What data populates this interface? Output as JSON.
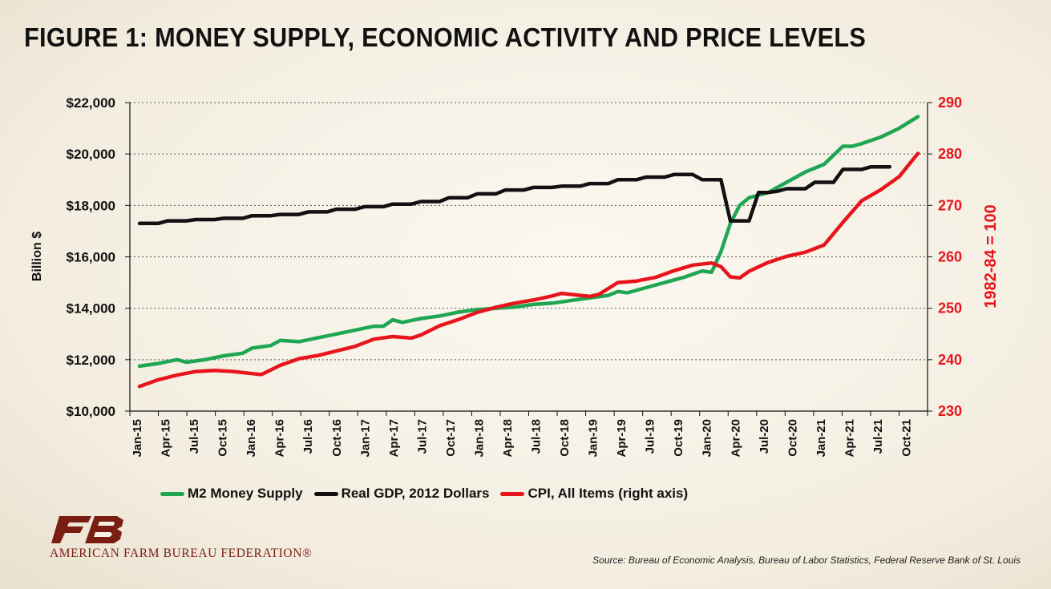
{
  "page": {
    "title": "FIGURE 1: MONEY SUPPLY, ECONOMIC ACTIVITY AND PRICE LEVELS",
    "source": "Source: Bureau of Economic Analysis, Bureau of Labor Statistics, Federal Reserve Bank of St. Louis",
    "logo_text": "AMERICAN FARM BUREAU FEDERATION®"
  },
  "chart_data": {
    "type": "line",
    "title": "FIGURE 1: MONEY SUPPLY, ECONOMIC ACTIVITY AND PRICE LEVELS",
    "ylabel": "Billion $",
    "y2label": "1982-84 = 100",
    "ylim": [
      10000,
      22000
    ],
    "y2lim": [
      230,
      290
    ],
    "yticks": [
      10000,
      12000,
      14000,
      16000,
      18000,
      20000,
      22000
    ],
    "ytick_labels": [
      "$10,000",
      "$12,000",
      "$14,000",
      "$16,000",
      "$18,000",
      "$20,000",
      "$22,000"
    ],
    "y2ticks": [
      230,
      240,
      250,
      260,
      270,
      280,
      290
    ],
    "y2tick_labels": [
      "230",
      "240",
      "250",
      "260",
      "270",
      "280",
      "290"
    ],
    "x_range": [
      "2015-01",
      "2021-12"
    ],
    "xtick_labels": [
      "Jan-15",
      "Apr-15",
      "Jul-15",
      "Oct-15",
      "Jan-16",
      "Apr-16",
      "Jul-16",
      "Oct-16",
      "Jan-17",
      "Apr-17",
      "Jul-17",
      "Oct-17",
      "Jan-18",
      "Apr-18",
      "Jul-18",
      "Oct-18",
      "Jan-19",
      "Apr-19",
      "Jul-19",
      "Oct-19",
      "Jan-20",
      "Apr-20",
      "Jul-20",
      "Oct-20",
      "Jan-21",
      "Apr-21",
      "Jul-21",
      "Oct-21"
    ],
    "grid": "horizontal-dotted",
    "legend_position": "bottom",
    "series": [
      {
        "name": "M2 Money Supply",
        "axis": "left",
        "color": "#1fa653",
        "x": [
          "2015-01",
          "2015-03",
          "2015-05",
          "2015-06",
          "2015-08",
          "2015-10",
          "2015-12",
          "2016-01",
          "2016-03",
          "2016-04",
          "2016-06",
          "2016-08",
          "2016-10",
          "2016-12",
          "2017-02",
          "2017-03",
          "2017-04",
          "2017-05",
          "2017-07",
          "2017-09",
          "2017-11",
          "2018-01",
          "2018-03",
          "2018-05",
          "2018-07",
          "2018-09",
          "2018-11",
          "2019-01",
          "2019-03",
          "2019-04",
          "2019-05",
          "2019-07",
          "2019-09",
          "2019-11",
          "2020-01",
          "2020-02",
          "2020-03",
          "2020-04",
          "2020-05",
          "2020-06",
          "2020-07",
          "2020-08",
          "2020-10",
          "2020-12",
          "2021-01",
          "2021-02",
          "2021-03",
          "2021-04",
          "2021-05",
          "2021-06",
          "2021-08",
          "2021-10",
          "2021-12"
        ],
        "y": [
          11750,
          11850,
          12000,
          11900,
          12000,
          12150,
          12250,
          12450,
          12550,
          12750,
          12700,
          12850,
          13000,
          13150,
          13300,
          13300,
          13550,
          13450,
          13600,
          13700,
          13850,
          13950,
          14000,
          14050,
          14150,
          14200,
          14300,
          14400,
          14500,
          14650,
          14600,
          14800,
          15000,
          15200,
          15450,
          15400,
          16200,
          17300,
          18000,
          18300,
          18400,
          18500,
          18900,
          19300,
          19450,
          19600,
          19950,
          20300,
          20300,
          20400,
          20650,
          21000,
          21450
        ]
      },
      {
        "name": "Real GDP, 2012 Dollars",
        "axis": "left",
        "color": "#111111",
        "x": [
          "2015-01",
          "2015-03",
          "2015-04",
          "2015-06",
          "2015-07",
          "2015-09",
          "2015-10",
          "2015-12",
          "2016-01",
          "2016-03",
          "2016-04",
          "2016-06",
          "2016-07",
          "2016-09",
          "2016-10",
          "2016-12",
          "2017-01",
          "2017-03",
          "2017-04",
          "2017-06",
          "2017-07",
          "2017-09",
          "2017-10",
          "2017-12",
          "2018-01",
          "2018-03",
          "2018-04",
          "2018-06",
          "2018-07",
          "2018-09",
          "2018-10",
          "2018-12",
          "2019-01",
          "2019-03",
          "2019-04",
          "2019-06",
          "2019-07",
          "2019-09",
          "2019-10",
          "2019-12",
          "2020-01",
          "2020-03",
          "2020-04",
          "2020-05",
          "2020-06",
          "2020-07",
          "2020-08",
          "2020-09",
          "2020-10",
          "2020-12",
          "2021-01",
          "2021-03",
          "2021-04",
          "2021-06",
          "2021-07",
          "2021-09"
        ],
        "y": [
          17300,
          17300,
          17400,
          17400,
          17450,
          17450,
          17500,
          17500,
          17600,
          17600,
          17650,
          17650,
          17750,
          17750,
          17850,
          17850,
          17950,
          17950,
          18050,
          18050,
          18150,
          18150,
          18300,
          18300,
          18450,
          18450,
          18600,
          18600,
          18700,
          18700,
          18750,
          18750,
          18850,
          18850,
          19000,
          19000,
          19100,
          19100,
          19200,
          19200,
          19000,
          19000,
          17400,
          17400,
          17400,
          18500,
          18500,
          18550,
          18650,
          18650,
          18900,
          18900,
          19400,
          19400,
          19500,
          19500
        ]
      },
      {
        "name": "CPI, All Items (right axis)",
        "axis": "right",
        "color": "#e8141c",
        "x": [
          "2015-01",
          "2015-03",
          "2015-05",
          "2015-07",
          "2015-09",
          "2015-11",
          "2016-01",
          "2016-02",
          "2016-04",
          "2016-06",
          "2016-08",
          "2016-10",
          "2016-12",
          "2017-02",
          "2017-04",
          "2017-06",
          "2017-07",
          "2017-09",
          "2017-11",
          "2018-01",
          "2018-03",
          "2018-05",
          "2018-07",
          "2018-09",
          "2018-10",
          "2018-12",
          "2019-01",
          "2019-02",
          "2019-04",
          "2019-06",
          "2019-08",
          "2019-10",
          "2019-12",
          "2020-02",
          "2020-03",
          "2020-04",
          "2020-05",
          "2020-06",
          "2020-08",
          "2020-10",
          "2020-12",
          "2021-02",
          "2021-04",
          "2021-06",
          "2021-08",
          "2021-10",
          "2021-12"
        ],
        "y": [
          234.8,
          236.1,
          237.0,
          237.7,
          237.9,
          237.7,
          237.3,
          237.1,
          238.9,
          240.2,
          240.8,
          241.7,
          242.6,
          244.0,
          244.5,
          244.2,
          244.8,
          246.6,
          247.8,
          249.2,
          250.2,
          251.0,
          251.6,
          252.4,
          252.9,
          252.5,
          252.3,
          252.7,
          255.0,
          255.3,
          256.0,
          257.3,
          258.4,
          258.8,
          258.1,
          256.1,
          255.9,
          257.2,
          258.9,
          260.1,
          260.9,
          262.3,
          266.7,
          270.9,
          273.0,
          275.6,
          280.1
        ]
      }
    ]
  }
}
